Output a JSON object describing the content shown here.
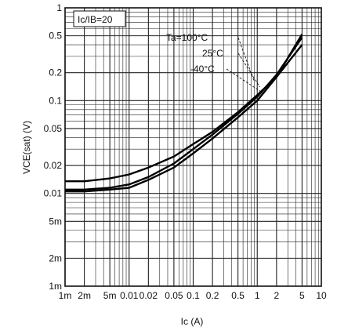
{
  "chart_data": {
    "type": "line",
    "xscale": "log",
    "yscale": "log",
    "xlim": [
      0.001,
      10
    ],
    "ylim": [
      0.001,
      1
    ],
    "grid": true,
    "xlabel": "Ic (A)",
    "ylabel": "VCE(sat) (V)",
    "condition_label": "Ic/IB=20",
    "x_tick_labels": [
      "1m",
      "2m",
      "5m",
      "0.01",
      "0.02",
      "0.05",
      "0.1",
      "0.2",
      "0.5",
      "1",
      "2",
      "5",
      "10"
    ],
    "x_tick_values": [
      0.001,
      0.002,
      0.005,
      0.01,
      0.02,
      0.05,
      0.1,
      0.2,
      0.5,
      1,
      2,
      5,
      10
    ],
    "y_tick_labels": [
      "1m",
      "2m",
      "5m",
      "0.01",
      "0.02",
      "0.05",
      "0.1",
      "0.2",
      "0.5",
      "1"
    ],
    "y_tick_values": [
      0.001,
      0.002,
      0.005,
      0.01,
      0.02,
      0.05,
      0.1,
      0.2,
      0.5,
      1
    ],
    "series": [
      {
        "name": "Ta=100°C",
        "x": [
          0.001,
          0.002,
          0.005,
          0.01,
          0.02,
          0.05,
          0.1,
          0.2,
          0.5,
          1,
          2,
          5
        ],
        "y": [
          0.0135,
          0.0135,
          0.0145,
          0.016,
          0.019,
          0.025,
          0.034,
          0.046,
          0.075,
          0.115,
          0.18,
          0.4
        ]
      },
      {
        "name": "25°C",
        "x": [
          0.001,
          0.002,
          0.005,
          0.01,
          0.02,
          0.05,
          0.1,
          0.2,
          0.5,
          1,
          2,
          5
        ],
        "y": [
          0.011,
          0.011,
          0.0115,
          0.0125,
          0.015,
          0.021,
          0.03,
          0.043,
          0.072,
          0.11,
          0.19,
          0.48
        ]
      },
      {
        "name": "-40°C",
        "x": [
          0.001,
          0.002,
          0.005,
          0.01,
          0.02,
          0.05,
          0.1,
          0.2,
          0.5,
          1,
          2,
          5
        ],
        "y": [
          0.0105,
          0.0105,
          0.011,
          0.0115,
          0.014,
          0.019,
          0.027,
          0.039,
          0.066,
          0.1,
          0.18,
          0.52
        ]
      }
    ],
    "series_labels": [
      "Ta=100°C",
      "25°C",
      "-40°C"
    ]
  }
}
